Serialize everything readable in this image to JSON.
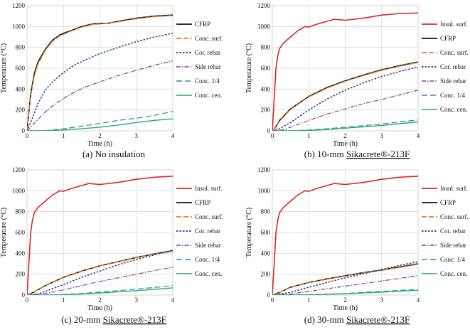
{
  "figure": {
    "panels": [
      {
        "caption": "(a) No insulation",
        "caption_underline": ""
      },
      {
        "caption": "(b) 10-mm ",
        "caption_underline": "Sikacrete®-213F"
      },
      {
        "caption": "(c) 20-mm ",
        "caption_underline": "Sikacrete®-213F"
      },
      {
        "caption": "(d) 30-mm ",
        "caption_underline": "Sikacrete®-213F"
      }
    ]
  },
  "series_styles": {
    "Insul. surf.": {
      "color": "#d62728",
      "dash": "",
      "width": 1.6
    },
    "CFRP": {
      "color": "#111111",
      "dash": "",
      "width": 1.6
    },
    "Conc. surf.": {
      "color": "#e67e22",
      "dash": "7,3",
      "width": 1.5
    },
    "Cor. rebar": {
      "color": "#1f3a8a",
      "dash": "2.5,2",
      "width": 1.5
    },
    "Side rebar": {
      "color": "#7b3fa0",
      "dash": "6,2,1.5,2",
      "width": 1.2
    },
    "Conc. 1/4": {
      "color": "#2e86c1",
      "dash": "8,4",
      "width": 1.2
    },
    "Conc. cen.": {
      "color": "#27ae60",
      "dash": "",
      "width": 1.4
    }
  },
  "chart_data": [
    {
      "type": "line",
      "title": "(a) No insulation",
      "xlabel": "Time (h)",
      "ylabel": "Temperature (°C)",
      "xlim": [
        0,
        4
      ],
      "ylim": [
        0,
        1200
      ],
      "xticks": [
        0,
        1,
        2,
        3,
        4
      ],
      "yticks": [
        0,
        200,
        400,
        600,
        800,
        1000,
        1200
      ],
      "grid": true,
      "legend": "right",
      "series": [
        {
          "name": "CFRP",
          "x": [
            0,
            0.1,
            0.2,
            0.3,
            0.5,
            0.7,
            0.9,
            1.0,
            1.2,
            1.5,
            1.8,
            2.0,
            2.2,
            2.5,
            3.0,
            3.5,
            4.0
          ],
          "y": [
            0,
            350,
            550,
            660,
            780,
            870,
            920,
            935,
            960,
            1000,
            1025,
            1030,
            1030,
            1050,
            1080,
            1100,
            1110
          ]
        },
        {
          "name": "Conc. surf.",
          "x": [
            0,
            0.1,
            0.2,
            0.3,
            0.5,
            0.7,
            0.9,
            1.0,
            1.2,
            1.5,
            1.8,
            2.0,
            2.2,
            2.5,
            3.0,
            3.5,
            4.0
          ],
          "y": [
            0,
            330,
            530,
            640,
            770,
            860,
            910,
            925,
            955,
            995,
            1020,
            1025,
            1030,
            1045,
            1075,
            1095,
            1105
          ]
        },
        {
          "name": "Cor. rebar",
          "x": [
            0,
            0.1,
            0.3,
            0.5,
            0.7,
            1.0,
            1.3,
            1.6,
            2.0,
            2.5,
            3.0,
            3.5,
            4.0
          ],
          "y": [
            0,
            80,
            260,
            390,
            470,
            560,
            630,
            680,
            740,
            800,
            855,
            900,
            935
          ]
        },
        {
          "name": "Side rebar",
          "x": [
            0,
            0.3,
            0.5,
            0.7,
            1.0,
            1.3,
            1.6,
            2.0,
            2.5,
            3.0,
            3.5,
            4.0
          ],
          "y": [
            0,
            110,
            180,
            240,
            310,
            370,
            420,
            470,
            530,
            580,
            630,
            670
          ]
        },
        {
          "name": "Conc. 1/4",
          "x": [
            0,
            0.5,
            1.0,
            1.5,
            2.0,
            2.5,
            3.0,
            3.5,
            4.0
          ],
          "y": [
            0,
            2,
            20,
            45,
            70,
            100,
            120,
            150,
            185
          ]
        },
        {
          "name": "Conc. cen.",
          "x": [
            0,
            0.5,
            1.0,
            1.5,
            2.0,
            2.5,
            3.0,
            3.5,
            4.0
          ],
          "y": [
            0,
            1,
            8,
            20,
            35,
            55,
            80,
            100,
            115
          ]
        }
      ]
    },
    {
      "type": "line",
      "title": "(b) 10-mm Sikacrete®-213F",
      "xlabel": "Time (h)",
      "ylabel": "Temperature (°C)",
      "xlim": [
        0,
        4
      ],
      "ylim": [
        0,
        1200
      ],
      "xticks": [
        0,
        1,
        2,
        3,
        4
      ],
      "yticks": [
        0,
        200,
        400,
        600,
        800,
        1000,
        1200
      ],
      "grid": true,
      "legend": "right",
      "series": [
        {
          "name": "Insul. surf.",
          "x": [
            0,
            0.05,
            0.1,
            0.15,
            0.2,
            0.3,
            0.5,
            0.7,
            0.9,
            1.0,
            1.2,
            1.5,
            1.7,
            2.0,
            2.5,
            3.0,
            3.5,
            4.0
          ],
          "y": [
            0,
            300,
            600,
            720,
            790,
            840,
            900,
            960,
            1000,
            995,
            1020,
            1050,
            1070,
            1060,
            1080,
            1110,
            1125,
            1130
          ]
        },
        {
          "name": "CFRP",
          "x": [
            0,
            0.1,
            0.2,
            0.5,
            1.0,
            1.5,
            2.0,
            2.5,
            3.0,
            3.5,
            4.0
          ],
          "y": [
            0,
            40,
            100,
            210,
            330,
            415,
            480,
            535,
            585,
            625,
            660
          ]
        },
        {
          "name": "Conc. surf.",
          "x": [
            0,
            0.1,
            0.2,
            0.5,
            1.0,
            1.5,
            2.0,
            2.5,
            3.0,
            3.5,
            4.0
          ],
          "y": [
            0,
            35,
            95,
            205,
            325,
            410,
            475,
            530,
            580,
            620,
            655
          ]
        },
        {
          "name": "Cor. rebar",
          "x": [
            0,
            0.2,
            0.5,
            1.0,
            1.5,
            2.0,
            2.5,
            3.0,
            3.5,
            4.0
          ],
          "y": [
            0,
            20,
            80,
            200,
            305,
            390,
            460,
            520,
            570,
            610
          ]
        },
        {
          "name": "Side rebar",
          "x": [
            0,
            0.3,
            0.5,
            1.0,
            1.5,
            2.0,
            2.5,
            3.0,
            3.5,
            4.0
          ],
          "y": [
            0,
            10,
            35,
            100,
            160,
            210,
            260,
            300,
            345,
            390
          ]
        },
        {
          "name": "Conc. 1/4",
          "x": [
            0,
            0.5,
            1.0,
            1.5,
            2.0,
            2.5,
            3.0,
            3.5,
            4.0
          ],
          "y": [
            0,
            1,
            8,
            20,
            35,
            50,
            65,
            85,
            105
          ]
        },
        {
          "name": "Conc. cen.",
          "x": [
            0,
            0.5,
            1.0,
            1.5,
            2.0,
            2.5,
            3.0,
            3.5,
            4.0
          ],
          "y": [
            0,
            0,
            4,
            12,
            25,
            38,
            52,
            68,
            85
          ]
        }
      ]
    },
    {
      "type": "line",
      "title": "(c) 20-mm Sikacrete®-213F",
      "xlabel": "Time (h)",
      "ylabel": "Temperature (°C)",
      "xlim": [
        0,
        4
      ],
      "ylim": [
        0,
        1200
      ],
      "xticks": [
        0,
        1,
        2,
        3,
        4
      ],
      "yticks": [
        0,
        200,
        400,
        600,
        800,
        1000,
        1200
      ],
      "grid": true,
      "legend": "right",
      "series": [
        {
          "name": "Insul. surf.",
          "x": [
            0,
            0.05,
            0.1,
            0.15,
            0.2,
            0.3,
            0.5,
            0.7,
            0.9,
            1.0,
            1.2,
            1.5,
            1.7,
            2.0,
            2.5,
            3.0,
            3.5,
            4.0
          ],
          "y": [
            0,
            300,
            600,
            720,
            790,
            840,
            900,
            960,
            1000,
            995,
            1020,
            1050,
            1070,
            1060,
            1080,
            1110,
            1130,
            1140
          ]
        },
        {
          "name": "CFRP",
          "x": [
            0,
            0.2,
            0.5,
            1.0,
            1.5,
            2.0,
            2.5,
            3.0,
            3.5,
            4.0
          ],
          "y": [
            0,
            30,
            90,
            170,
            230,
            280,
            320,
            360,
            395,
            425
          ]
        },
        {
          "name": "Conc. surf.",
          "x": [
            0,
            0.2,
            0.5,
            1.0,
            1.5,
            2.0,
            2.5,
            3.0,
            3.5,
            4.0
          ],
          "y": [
            0,
            30,
            88,
            168,
            228,
            278,
            318,
            358,
            393,
            420
          ]
        },
        {
          "name": "Cor. rebar",
          "x": [
            0,
            0.3,
            0.5,
            1.0,
            1.5,
            2.0,
            2.5,
            3.0,
            3.5,
            4.0
          ],
          "y": [
            0,
            10,
            35,
            100,
            170,
            230,
            290,
            340,
            385,
            430
          ]
        },
        {
          "name": "Side rebar",
          "x": [
            0,
            0.5,
            1.0,
            1.5,
            2.0,
            2.5,
            3.0,
            3.5,
            4.0
          ],
          "y": [
            0,
            15,
            50,
            90,
            130,
            165,
            200,
            235,
            265
          ]
        },
        {
          "name": "Conc. 1/4",
          "x": [
            0,
            0.5,
            1.0,
            1.5,
            2.0,
            2.5,
            3.0,
            3.5,
            4.0
          ],
          "y": [
            0,
            1,
            5,
            15,
            28,
            42,
            57,
            73,
            90
          ]
        },
        {
          "name": "Conc. cen.",
          "x": [
            0,
            0.5,
            1.0,
            1.5,
            2.0,
            2.5,
            3.0,
            3.5,
            4.0
          ],
          "y": [
            0,
            0,
            3,
            10,
            20,
            30,
            42,
            55,
            68
          ]
        }
      ]
    },
    {
      "type": "line",
      "title": "(d) 30-mm Sikacrete®-213F",
      "xlabel": "Time (h)",
      "ylabel": "Temperature (°C)",
      "xlim": [
        0,
        4
      ],
      "ylim": [
        0,
        1200
      ],
      "xticks": [
        0,
        1,
        2,
        3,
        4
      ],
      "yticks": [
        0,
        200,
        400,
        600,
        800,
        1000,
        1200
      ],
      "grid": true,
      "legend": "right",
      "series": [
        {
          "name": "Insul. surf.",
          "x": [
            0,
            0.05,
            0.1,
            0.15,
            0.2,
            0.3,
            0.5,
            0.7,
            0.9,
            1.0,
            1.2,
            1.5,
            1.7,
            2.0,
            2.5,
            3.0,
            3.5,
            4.0
          ],
          "y": [
            0,
            300,
            600,
            720,
            790,
            840,
            900,
            960,
            1000,
            995,
            1020,
            1050,
            1070,
            1060,
            1080,
            1110,
            1130,
            1140
          ]
        },
        {
          "name": "CFRP",
          "x": [
            0,
            0.2,
            0.5,
            1.0,
            1.5,
            2.0,
            2.5,
            3.0,
            3.5,
            4.0
          ],
          "y": [
            0,
            25,
            75,
            120,
            155,
            185,
            215,
            240,
            270,
            300
          ]
        },
        {
          "name": "Conc. surf.",
          "x": [
            0,
            0.2,
            0.5,
            1.0,
            1.5,
            2.0,
            2.5,
            3.0,
            3.5,
            4.0
          ],
          "y": [
            0,
            25,
            73,
            118,
            152,
            182,
            212,
            238,
            265,
            295
          ]
        },
        {
          "name": "Cor. rebar",
          "x": [
            0,
            0.5,
            1.0,
            1.5,
            2.0,
            2.5,
            3.0,
            3.5,
            4.0
          ],
          "y": [
            0,
            25,
            75,
            120,
            165,
            205,
            245,
            285,
            320
          ]
        },
        {
          "name": "Side rebar",
          "x": [
            0,
            0.5,
            1.0,
            1.5,
            2.0,
            2.5,
            3.0,
            3.5,
            4.0
          ],
          "y": [
            0,
            10,
            35,
            60,
            85,
            110,
            135,
            160,
            185
          ]
        },
        {
          "name": "Conc. 1/4",
          "x": [
            0,
            0.5,
            1.0,
            1.5,
            2.0,
            2.5,
            3.0,
            3.5,
            4.0
          ],
          "y": [
            0,
            1,
            3,
            8,
            15,
            25,
            35,
            45,
            55
          ]
        },
        {
          "name": "Conc. cen.",
          "x": [
            0,
            0.5,
            1.0,
            1.5,
            2.0,
            2.5,
            3.0,
            3.5,
            4.0
          ],
          "y": [
            0,
            0,
            2,
            6,
            12,
            20,
            28,
            37,
            45
          ]
        }
      ]
    }
  ]
}
